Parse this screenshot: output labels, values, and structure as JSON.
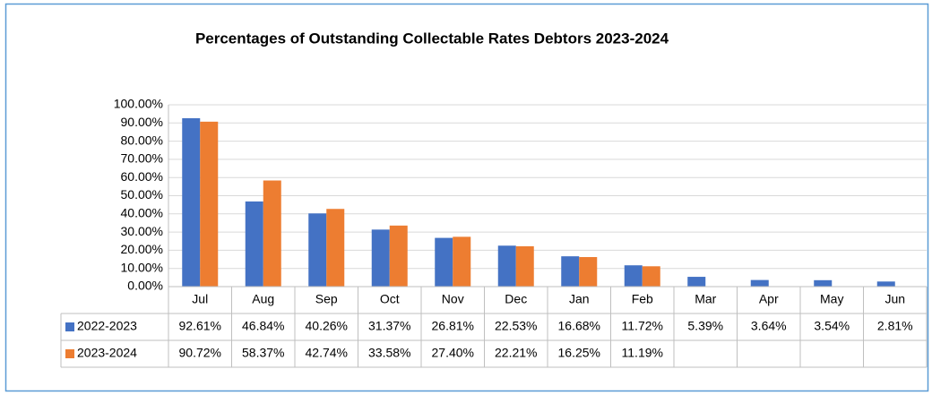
{
  "chart_data": {
    "type": "bar",
    "title": "Percentages of Outstanding Collectable Rates Debtors 2023-2024",
    "categories": [
      "Jul",
      "Aug",
      "Sep",
      "Oct",
      "Nov",
      "Dec",
      "Jan",
      "Feb",
      "Mar",
      "Apr",
      "May",
      "Jun"
    ],
    "series": [
      {
        "name": "2022-2023",
        "color": "#4472c4",
        "values": [
          92.61,
          46.84,
          40.26,
          31.37,
          26.81,
          22.53,
          16.68,
          11.72,
          5.39,
          3.64,
          3.54,
          2.81
        ],
        "value_labels": [
          "92.61%",
          "46.84%",
          "40.26%",
          "31.37%",
          "26.81%",
          "22.53%",
          "16.68%",
          "11.72%",
          "5.39%",
          "3.64%",
          "3.54%",
          "2.81%"
        ]
      },
      {
        "name": "2023-2024",
        "color": "#ed7d31",
        "values": [
          90.72,
          58.37,
          42.74,
          33.58,
          27.4,
          22.21,
          16.25,
          11.19,
          null,
          null,
          null,
          null
        ],
        "value_labels": [
          "90.72%",
          "58.37%",
          "42.74%",
          "33.58%",
          "27.40%",
          "22.21%",
          "16.25%",
          "11.19%",
          null,
          null,
          null,
          null
        ]
      }
    ],
    "ylim": [
      0,
      100
    ],
    "yticks": [
      {
        "value": 0,
        "label": "0.00%"
      },
      {
        "value": 10,
        "label": "10.00%"
      },
      {
        "value": 20,
        "label": "20.00%"
      },
      {
        "value": 30,
        "label": "30.00%"
      },
      {
        "value": 40,
        "label": "40.00%"
      },
      {
        "value": 50,
        "label": "50.00%"
      },
      {
        "value": 60,
        "label": "60.00%"
      },
      {
        "value": 70,
        "label": "70.00%"
      },
      {
        "value": 80,
        "label": "80.00%"
      },
      {
        "value": 90,
        "label": "90.00%"
      },
      {
        "value": 100,
        "label": "100.00%"
      }
    ],
    "grid": true
  }
}
